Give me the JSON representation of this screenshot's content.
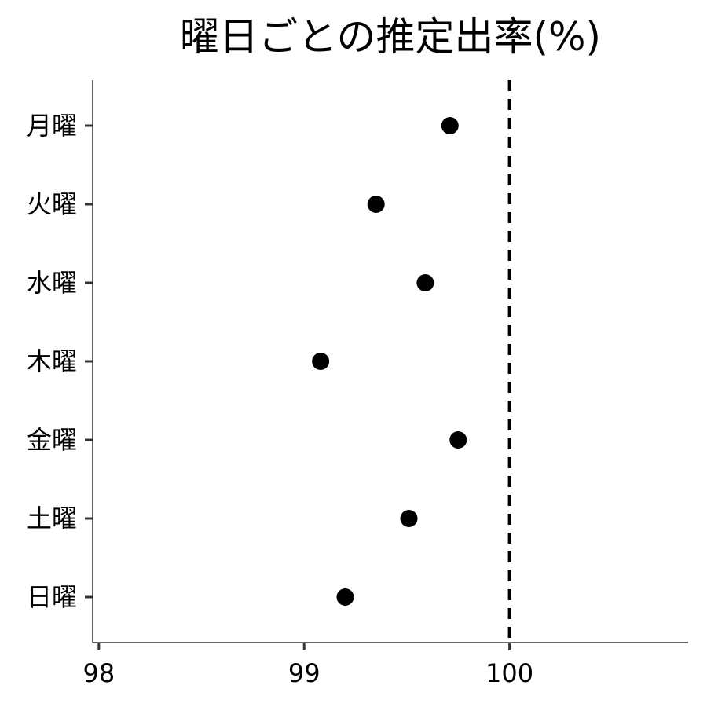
{
  "chart_data": {
    "type": "scatter",
    "title": "曜日ごとの推定出率(%)",
    "xlabel": "",
    "ylabel": "",
    "xlim": [
      97.97,
      100.87
    ],
    "x_ticks": [
      98,
      99,
      100
    ],
    "x_tick_labels": [
      "98",
      "99",
      "100"
    ],
    "categories": [
      "月曜",
      "火曜",
      "水曜",
      "木曜",
      "金曜",
      "土曜",
      "日曜"
    ],
    "values": [
      99.71,
      99.35,
      99.59,
      99.08,
      99.75,
      99.51,
      99.2
    ],
    "reference_line": {
      "x": 100,
      "style": "dashed"
    },
    "grid": false,
    "legend": "none",
    "colors": {
      "point": "#000000",
      "axis": "#333333",
      "reference": "#000000"
    }
  }
}
